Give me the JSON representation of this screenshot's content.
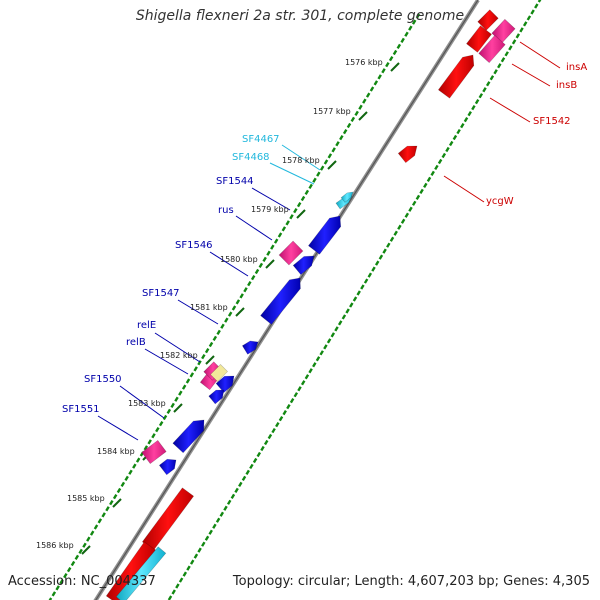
{
  "title": "Shigella flexneri 2a str. 301, complete genome",
  "footer": {
    "accession": "Accession: NC_004337",
    "summary": "Topology: circular; Length: 4,607,203 bp; Genes: 4,305"
  },
  "colors": {
    "red": "#ee0000",
    "pink": "#ee2288",
    "blue": "#1010dd",
    "cyan": "#22c0ee",
    "label_red": "#cc0000",
    "label_blue": "#0000aa",
    "label_cyan": "#22b8dd",
    "tick_green": "#118811",
    "backbone": "#888888"
  },
  "ticks": [
    "1576 kbp",
    "1577 kbp",
    "1578 kbp",
    "1579 kbp",
    "1580 kbp",
    "1581 kbp",
    "1582 kbp",
    "1583 kbp",
    "1584 kbp",
    "1585 kbp",
    "1586 kbp"
  ],
  "gene_labels": {
    "right": [
      "insA",
      "insB",
      "SF1542",
      "ycgW"
    ],
    "left_cyan": [
      "SF4467",
      "SF4468"
    ],
    "left_blue": [
      "SF1544",
      "rus",
      "SF1546",
      "SF1547",
      "relE",
      "relB",
      "SF1550",
      "SF1551"
    ]
  }
}
